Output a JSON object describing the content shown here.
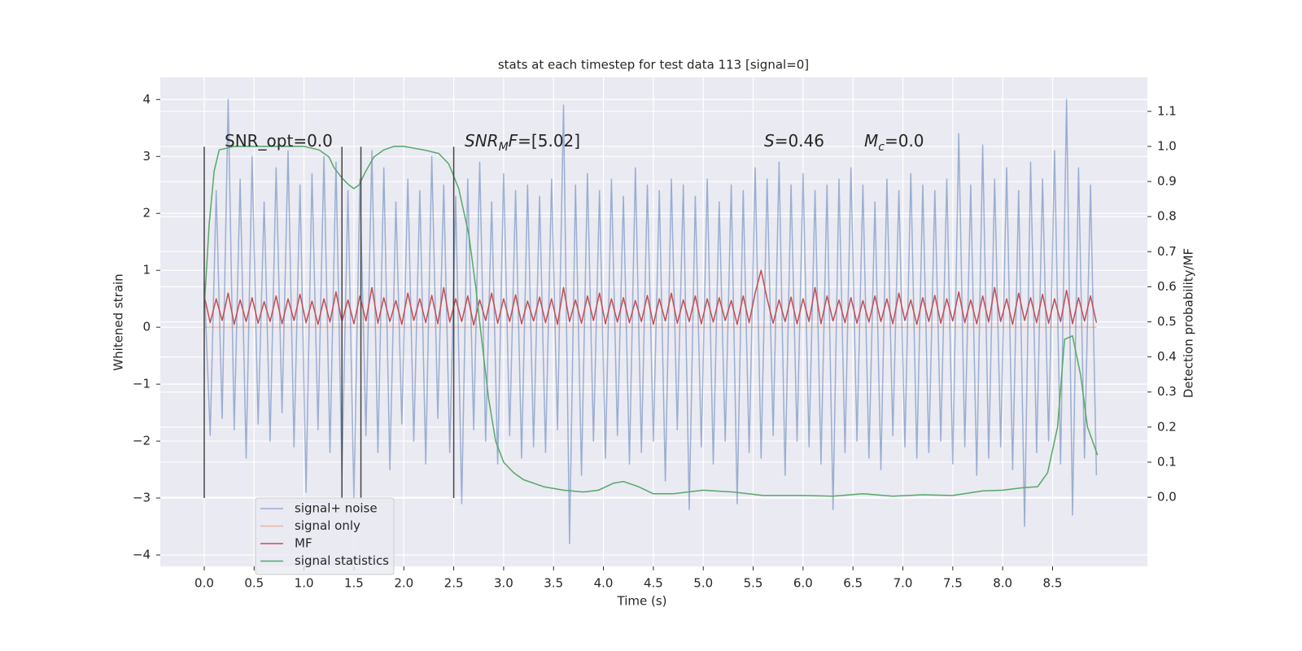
{
  "chart_data": {
    "type": "line",
    "title": "stats at each timestep for test data 113 [signal=0]",
    "xlabel": "Time (s)",
    "ylabel": "Whitened strain",
    "y2label": "Detection probability/MF",
    "xlim": [
      -0.44,
      9.45
    ],
    "ylim": [
      -4.2,
      4.39
    ],
    "y2lim": [
      -0.197,
      1.197
    ],
    "xticks": [
      {
        "value": 0,
        "label": "0.0"
      },
      0.5,
      {
        "value": 1,
        "label": "1.0"
      },
      1.5,
      {
        "value": 2,
        "label": "2.0"
      },
      2.5,
      {
        "value": 3,
        "label": "3.0"
      },
      3.5,
      {
        "value": 4,
        "label": "4.0"
      },
      4.5,
      {
        "value": 5,
        "label": "5.0"
      },
      5.5,
      {
        "value": 6,
        "label": "6.0"
      },
      6.5,
      {
        "value": 7,
        "label": "7.0"
      },
      7.5,
      {
        "value": 8,
        "label": "8.0"
      },
      8.5
    ],
    "yticks": [
      {
        "value": -4,
        "label": "−4"
      },
      {
        "value": -3,
        "label": "−3"
      },
      {
        "value": -2,
        "label": "−2"
      },
      {
        "value": -1,
        "label": "−1"
      },
      0,
      1,
      2,
      3,
      4
    ],
    "y2ticks": [
      {
        "value": 0,
        "label": "0.0"
      },
      0.1,
      0.2,
      0.3,
      0.4,
      0.5,
      0.6,
      0.7,
      0.8,
      0.9,
      {
        "value": 1,
        "label": "1.0"
      },
      1.1
    ],
    "grid": true,
    "legend": "lower left",
    "x": [
      0,
      0.06,
      0.12,
      0.18,
      0.24,
      0.3,
      0.36,
      0.42,
      0.48,
      0.54,
      0.6,
      0.66,
      0.72,
      0.78,
      0.84,
      0.9,
      0.96,
      1.02,
      1.08,
      1.14,
      1.2,
      1.26,
      1.32,
      1.38,
      1.44,
      1.5,
      1.56,
      1.62,
      1.68,
      1.74,
      1.8,
      1.86,
      1.92,
      1.98,
      2.04,
      2.1,
      2.16,
      2.22,
      2.28,
      2.34,
      2.4,
      2.46,
      2.52,
      2.58,
      2.64,
      2.7,
      2.76,
      2.82,
      2.88,
      2.94,
      3,
      3.06,
      3.12,
      3.18,
      3.24,
      3.3,
      3.36,
      3.42,
      3.48,
      3.54,
      3.6,
      3.66,
      3.72,
      3.78,
      3.84,
      3.9,
      3.96,
      4.02,
      4.08,
      4.14,
      4.2,
      4.26,
      4.32,
      4.38,
      4.44,
      4.5,
      4.56,
      4.62,
      4.68,
      4.74,
      4.8,
      4.86,
      4.92,
      4.98,
      5.04,
      5.1,
      5.16,
      5.22,
      5.28,
      5.34,
      5.4,
      5.46,
      5.52,
      5.58,
      5.64,
      5.7,
      5.76,
      5.82,
      5.88,
      5.94,
      6,
      6.06,
      6.12,
      6.18,
      6.24,
      6.3,
      6.36,
      6.42,
      6.48,
      6.54,
      6.6,
      6.66,
      6.72,
      6.78,
      6.84,
      6.9,
      6.96,
      7.02,
      7.08,
      7.14,
      7.2,
      7.26,
      7.32,
      7.38,
      7.44,
      7.5,
      7.56,
      7.62,
      7.68,
      7.74,
      7.8,
      7.86,
      7.92,
      7.98,
      8.04,
      8.1,
      8.16,
      8.22,
      8.28,
      8.34,
      8.4,
      8.46,
      8.52,
      8.58,
      8.64,
      8.7,
      8.76,
      8.82,
      8.88,
      8.94
    ],
    "series": [
      {
        "name": "signal only",
        "color": "#dd8452",
        "values": [
          0,
          0,
          0,
          0,
          0,
          0,
          0,
          0,
          0,
          0,
          0,
          0,
          0,
          0,
          0,
          0,
          0,
          0,
          0,
          0,
          0,
          0,
          0,
          0,
          0,
          0,
          0,
          0,
          0,
          0,
          0,
          0,
          0,
          0,
          0,
          0,
          0,
          0,
          0,
          0,
          0,
          0,
          0,
          0,
          0,
          0,
          0,
          0,
          0,
          0,
          0,
          0,
          0,
          0,
          0,
          0,
          0,
          0,
          0,
          0,
          0,
          0,
          0,
          0,
          0,
          0,
          0,
          0,
          0,
          0,
          0,
          0,
          0,
          0,
          0,
          0,
          0,
          0,
          0,
          0,
          0,
          0,
          0,
          0,
          0,
          0,
          0,
          0,
          0,
          0,
          0,
          0,
          0,
          0,
          0,
          0,
          0,
          0,
          0,
          0,
          0,
          0,
          0,
          0,
          0,
          0,
          0,
          0,
          0,
          0,
          0,
          0,
          0,
          0,
          0,
          0,
          0,
          0,
          0,
          0,
          0,
          0,
          0,
          0,
          0,
          0,
          0,
          0,
          0,
          0,
          0,
          0,
          0,
          0,
          0,
          0,
          0,
          0,
          0,
          0,
          0,
          0,
          0,
          0,
          0,
          0,
          0,
          0,
          0,
          0
        ]
      },
      {
        "name": "signal+ noise",
        "color": "#4c72b0",
        "values": [
          0.8,
          -1.9,
          2.4,
          -1.6,
          4.0,
          -1.8,
          2.6,
          -2.3,
          3.0,
          -1.7,
          2.2,
          -2.0,
          2.8,
          -1.5,
          3.1,
          -2.1,
          2.5,
          -2.9,
          2.7,
          -1.8,
          3.0,
          -2.2,
          2.9,
          -2.6,
          2.4,
          -3.0,
          2.6,
          -1.9,
          3.1,
          -2.2,
          2.8,
          -2.5,
          2.2,
          -1.7,
          2.6,
          -2.0,
          2.4,
          -2.4,
          3.0,
          -1.6,
          2.5,
          -2.2,
          2.3,
          -3.1,
          2.6,
          -1.8,
          2.9,
          -2.0,
          2.2,
          -2.4,
          2.7,
          -1.9,
          2.4,
          -2.3,
          2.5,
          -2.1,
          2.3,
          -2.2,
          2.6,
          -1.8,
          3.9,
          -3.8,
          2.5,
          -2.6,
          2.7,
          -2.0,
          2.4,
          -2.3,
          2.6,
          -1.9,
          2.3,
          -2.4,
          2.8,
          -2.2,
          2.5,
          -2.0,
          2.4,
          -2.7,
          2.6,
          -1.8,
          2.5,
          -3.2,
          2.3,
          -2.1,
          2.6,
          -2.4,
          2.2,
          -2.0,
          2.5,
          -3.1,
          2.4,
          -2.2,
          2.8,
          -2.3,
          2.6,
          -1.9,
          2.9,
          -2.6,
          2.5,
          -2.0,
          2.7,
          -2.1,
          2.4,
          -2.4,
          2.5,
          -3.2,
          2.6,
          -2.2,
          2.8,
          -2.0,
          2.5,
          -2.3,
          2.2,
          -2.5,
          2.6,
          -1.9,
          2.4,
          -2.1,
          2.7,
          -2.3,
          2.5,
          -2.2,
          2.4,
          -2.0,
          2.6,
          -2.4,
          3.4,
          -2.1,
          2.5,
          -2.6,
          3.2,
          -2.3,
          2.6,
          -2.1,
          2.8,
          -2.5,
          2.4,
          -3.5,
          2.9,
          -2.2,
          2.6,
          -2.0,
          3.1,
          -2.4,
          4.0,
          -3.3,
          2.8,
          -2.3,
          2.5,
          -2.6
        ]
      },
      {
        "name": "MF",
        "color": "#c44e52",
        "values": [
          0.55,
          0.08,
          0.5,
          0.12,
          0.6,
          0.05,
          0.48,
          0.1,
          0.52,
          0.07,
          0.45,
          0.1,
          0.55,
          0.06,
          0.5,
          0.12,
          0.58,
          0.08,
          0.46,
          0.05,
          0.5,
          0.09,
          0.62,
          0.1,
          0.48,
          0.06,
          0.55,
          0.11,
          0.7,
          0.07,
          0.52,
          0.1,
          0.47,
          0.05,
          0.6,
          0.12,
          0.5,
          0.08,
          0.56,
          0.06,
          0.7,
          0.09,
          0.5,
          0.1,
          0.55,
          0.04,
          0.48,
          0.12,
          0.6,
          0.07,
          0.5,
          0.1,
          0.57,
          0.06,
          0.46,
          0.11,
          0.53,
          0.08,
          0.5,
          0.05,
          0.7,
          0.1,
          0.48,
          0.07,
          0.55,
          0.12,
          0.6,
          0.06,
          0.5,
          0.09,
          0.52,
          0.08,
          0.47,
          0.1,
          0.56,
          0.05,
          0.5,
          0.11,
          0.6,
          0.07,
          0.48,
          0.1,
          0.55,
          0.06,
          0.5,
          0.09,
          0.52,
          0.12,
          0.47,
          0.05,
          0.55,
          0.08,
          0.6,
          1.0,
          0.5,
          0.07,
          0.48,
          0.1,
          0.53,
          0.06,
          0.5,
          0.1,
          0.7,
          0.06,
          0.55,
          0.11,
          0.48,
          0.08,
          0.52,
          0.07,
          0.47,
          0.09,
          0.55,
          0.1,
          0.5,
          0.06,
          0.6,
          0.12,
          0.48,
          0.05,
          0.52,
          0.1,
          0.56,
          0.07,
          0.5,
          0.11,
          0.62,
          0.08,
          0.48,
          0.06,
          0.55,
          0.09,
          0.7,
          0.1,
          0.5,
          0.05,
          0.6,
          0.12,
          0.52,
          0.08,
          0.58,
          0.07,
          0.5,
          0.1,
          0.65,
          0.06,
          0.52,
          0.11,
          0.55,
          0.08
        ]
      },
      {
        "name": "signal statistics",
        "color": "#55a868",
        "axis": "y2",
        "x": [
          0,
          0.05,
          0.1,
          0.15,
          0.3,
          0.5,
          0.8,
          1.0,
          1.15,
          1.25,
          1.3,
          1.38,
          1.45,
          1.5,
          1.55,
          1.62,
          1.7,
          1.8,
          1.9,
          2.0,
          2.2,
          2.35,
          2.45,
          2.55,
          2.65,
          2.72,
          2.78,
          2.85,
          2.92,
          3.0,
          3.1,
          3.2,
          3.4,
          3.6,
          3.8,
          3.95,
          4.1,
          4.2,
          4.35,
          4.5,
          4.7,
          5.0,
          5.3,
          5.6,
          6.0,
          6.3,
          6.6,
          6.9,
          7.2,
          7.5,
          7.8,
          8.0,
          8.2,
          8.35,
          8.45,
          8.55,
          8.62,
          8.7,
          8.78,
          8.85,
          8.95
        ],
        "values": [
          0.54,
          0.78,
          0.93,
          0.99,
          1.0,
          1.0,
          1.0,
          1.0,
          0.99,
          0.97,
          0.94,
          0.91,
          0.89,
          0.88,
          0.89,
          0.93,
          0.97,
          0.99,
          1.0,
          1.0,
          0.99,
          0.98,
          0.95,
          0.88,
          0.75,
          0.6,
          0.45,
          0.28,
          0.16,
          0.1,
          0.07,
          0.05,
          0.03,
          0.02,
          0.015,
          0.02,
          0.04,
          0.045,
          0.03,
          0.01,
          0.01,
          0.02,
          0.015,
          0.005,
          0.005,
          0.003,
          0.01,
          0.003,
          0.007,
          0.005,
          0.018,
          0.02,
          0.027,
          0.03,
          0.07,
          0.2,
          0.45,
          0.46,
          0.35,
          0.2,
          0.12
        ]
      }
    ],
    "vlines": {
      "x": [
        0,
        1.38,
        1.57,
        2.5
      ],
      "ymin": -3.0,
      "ymax": 3.17,
      "color": "#444444"
    },
    "annotations": [
      [
        {
          "text": "SNR_opt=0.0",
          "style": "normal"
        }
      ],
      [
        {
          "text": "SNR",
          "style": "italic"
        },
        {
          "text": "M",
          "style": "sub"
        },
        {
          "text": "F",
          "style": "italic"
        },
        {
          "text": "=[5.02]",
          "style": "normal"
        }
      ],
      [
        {
          "text": "S",
          "style": "italic"
        },
        {
          "text": "=0.46",
          "style": "normal"
        }
      ],
      [
        {
          "text": "M",
          "style": "italic"
        },
        {
          "text": "c",
          "style": "sub"
        },
        {
          "text": "=0.0",
          "style": "normal"
        }
      ]
    ]
  }
}
